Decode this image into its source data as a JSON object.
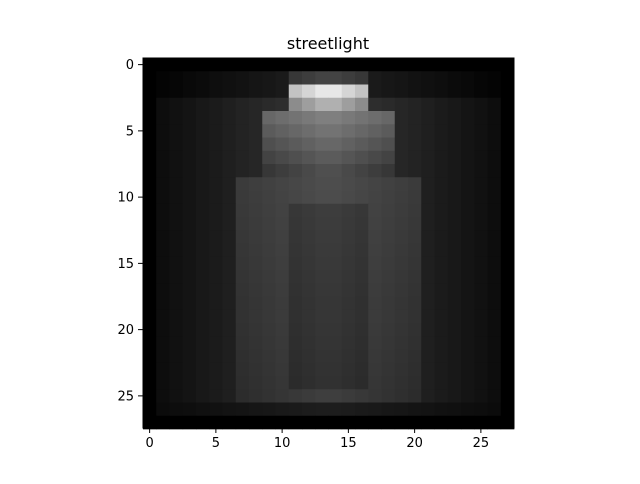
{
  "chart_data": {
    "type": "heatmap",
    "title": "streetlight",
    "xlabel": "",
    "ylabel": "",
    "grid": false,
    "colormap": "gray",
    "xlim": [
      -0.5,
      27.5
    ],
    "ylim": [
      27.5,
      -0.5
    ],
    "x_ticks": [
      0,
      5,
      10,
      15,
      20,
      25
    ],
    "x_tick_labels": [
      "0",
      "5",
      "10",
      "15",
      "20",
      "25"
    ],
    "y_ticks": [
      0,
      5,
      10,
      15,
      20,
      25
    ],
    "y_tick_labels": [
      "0",
      "5",
      "10",
      "15",
      "20",
      "25"
    ],
    "value_range": [
      0,
      255
    ],
    "size": [
      28,
      28
    ],
    "values_note": "values are approximate grayscale intensities (0-255) read from the image"
  }
}
